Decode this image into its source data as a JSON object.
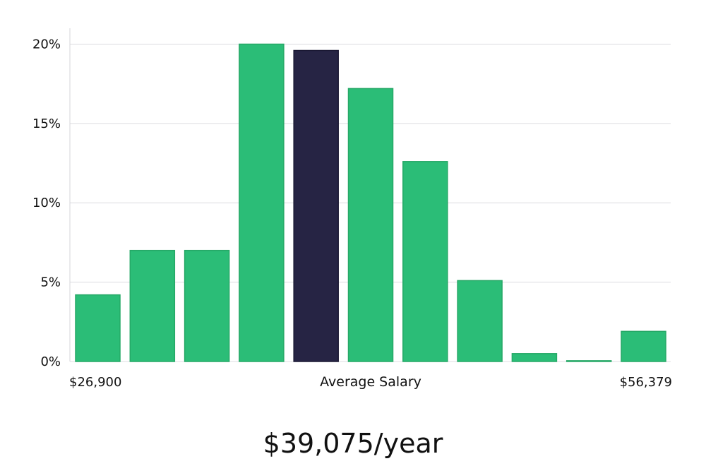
{
  "chart_data": {
    "type": "bar",
    "title": "",
    "xlabel": "Average Salary",
    "ylabel": "",
    "x_min_label": "$26,900",
    "x_max_label": "$56,379",
    "y_tick_labels": [
      "0%",
      "5%",
      "10%",
      "15%",
      "20%"
    ],
    "y_ticks": [
      0,
      5,
      10,
      15,
      20
    ],
    "ylim": [
      0,
      21
    ],
    "grid": true,
    "values": [
      4.2,
      7.0,
      7.0,
      20.0,
      19.6,
      17.2,
      12.6,
      5.1,
      0.5,
      0.05,
      1.9
    ],
    "highlight_index": 4,
    "bar_color": "#2bbd77",
    "highlight_color": "#262444"
  },
  "summary": {
    "salary_text": "$39,075/year"
  }
}
